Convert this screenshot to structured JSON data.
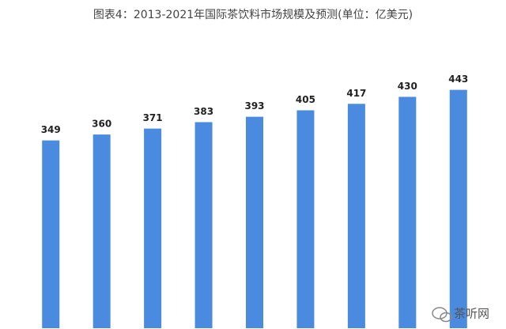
{
  "chart_data": {
    "type": "bar",
    "title": "图表4：2013-2021年国际茶饮料市场规模及预测(单位：亿美元)",
    "categories": [
      null,
      null,
      null,
      null,
      null,
      null,
      null,
      null,
      null
    ],
    "values": [
      349,
      360,
      371,
      383,
      393,
      405,
      417,
      430,
      443
    ],
    "color": "#4a8be0",
    "ylim": [
      0,
      610
    ],
    "watermark": "茶听网"
  }
}
